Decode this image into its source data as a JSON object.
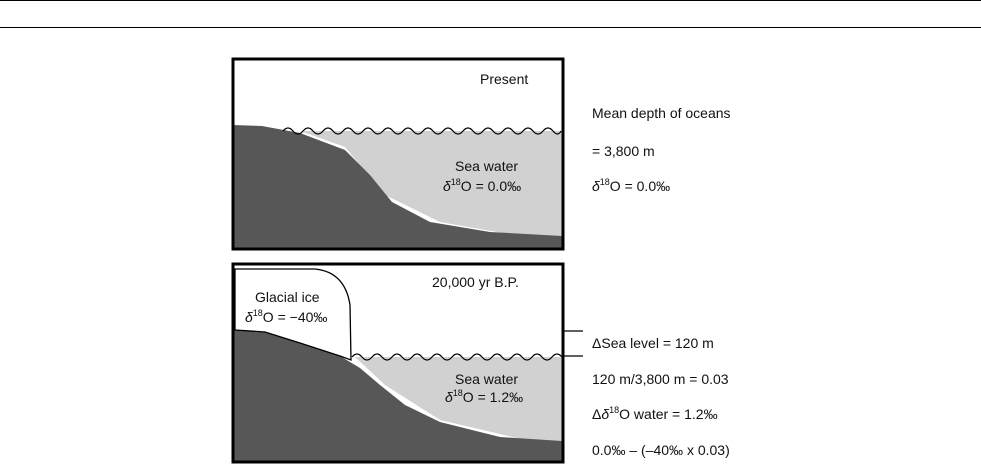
{
  "panels": {
    "present": {
      "title": "Present",
      "sea_label": "Sea water",
      "sea_delta_sym": "δ",
      "sea_delta_sup": "18",
      "sea_delta_rest": "O = 0.0‰"
    },
    "glacial": {
      "title": "20,000 yr B.P.",
      "ice_label": "Glacial ice",
      "ice_delta_sym": "δ",
      "ice_delta_sup": "18",
      "ice_delta_rest": "O = −40‰",
      "sea_label": "Sea water",
      "sea_delta_sym": "δ",
      "sea_delta_sup": "18",
      "sea_delta_rest": "O = 1.2‰"
    }
  },
  "side": {
    "mean_depth_label": "Mean depth of oceans",
    "mean_depth_value": "= 3,800 m",
    "present_delta_sym": "δ",
    "present_delta_sup": "18",
    "present_delta_rest": "O = 0.0‰",
    "sea_level_change": "ΔSea level = 120 m",
    "ratio": "120 m/3,800 m = 0.03",
    "delta_water_pre": "Δ",
    "delta_water_sym": "δ",
    "delta_water_sup": "18",
    "delta_water_rest": "O water = 1.2‰",
    "formula": "0.0‰ – (–40‰ x 0.03)"
  },
  "colors": {
    "land": "#575757",
    "sea": "#d1d1d1",
    "ice": "#ffffff",
    "outline": "#000000"
  }
}
